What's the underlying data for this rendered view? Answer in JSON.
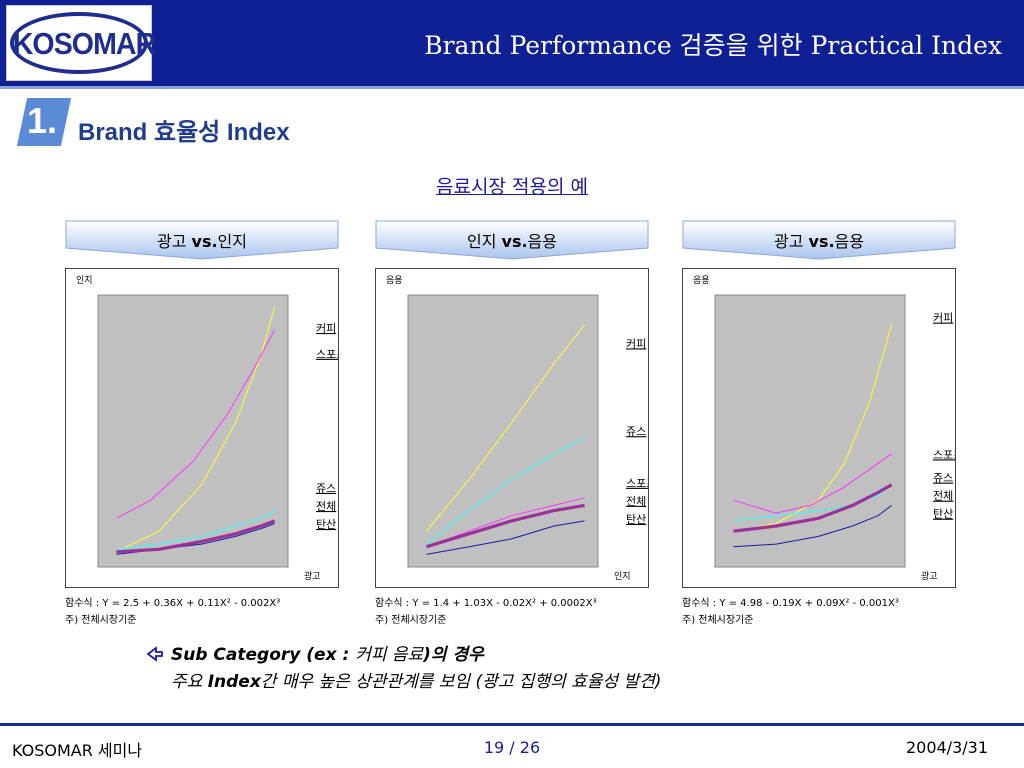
{
  "header": {
    "logo_text": "KOSOMAR",
    "title": "Brand Performance 검증을 위한 Practical Index"
  },
  "section": {
    "number": "1.",
    "title": "Brand 효율성 Index"
  },
  "subtitle": "음료시장 적용의 예",
  "panels": [
    {
      "banner": {
        "prefix": "광고 ",
        "vs": "vs.",
        "suffix": "인지"
      },
      "y_label": "인지",
      "x_label": "광고",
      "formula": "함수식 : Y = 2.5 + 0.36X + 0.11X² - 0.002X³",
      "note": "주) 전체시장기준",
      "series": [
        {
          "name": "커피",
          "color": "#ffff33",
          "points": [
            [
              0.05,
              0.98
            ],
            [
              0.3,
              0.9
            ],
            [
              0.55,
              0.72
            ],
            [
              0.75,
              0.48
            ],
            [
              0.9,
              0.22
            ],
            [
              0.98,
              0.03
            ]
          ]
        },
        {
          "name": "스포츠",
          "color": "#ff33ff",
          "points": [
            [
              0.05,
              0.85
            ],
            [
              0.25,
              0.78
            ],
            [
              0.5,
              0.63
            ],
            [
              0.7,
              0.45
            ],
            [
              0.85,
              0.28
            ],
            [
              0.98,
              0.12
            ]
          ]
        },
        {
          "name": "쥬스",
          "color": "#33ffff",
          "points": [
            [
              0.05,
              0.97
            ],
            [
              0.3,
              0.95
            ],
            [
              0.55,
              0.92
            ],
            [
              0.75,
              0.88
            ],
            [
              0.9,
              0.85
            ],
            [
              0.98,
              0.82
            ]
          ]
        },
        {
          "name": "전체",
          "color": "#993399",
          "bold": true,
          "points": [
            [
              0.05,
              0.98
            ],
            [
              0.3,
              0.97
            ],
            [
              0.55,
              0.94
            ],
            [
              0.75,
              0.91
            ],
            [
              0.9,
              0.88
            ],
            [
              0.98,
              0.86
            ]
          ]
        },
        {
          "name": "탄산",
          "color": "#1a1aa0",
          "points": [
            [
              0.05,
              0.99
            ],
            [
              0.3,
              0.97
            ],
            [
              0.55,
              0.95
            ],
            [
              0.75,
              0.92
            ],
            [
              0.9,
              0.89
            ],
            [
              0.98,
              0.87
            ]
          ]
        }
      ],
      "labels": [
        {
          "text": "커피",
          "y": 0.12
        },
        {
          "text": "스포츠",
          "y": 0.22
        },
        {
          "text": "쥬스",
          "y": 0.74
        },
        {
          "text": "전체",
          "y": 0.81
        },
        {
          "text": "탄산",
          "y": 0.88
        }
      ]
    },
    {
      "banner": {
        "prefix": "인지 ",
        "vs": "vs.",
        "suffix": "음용"
      },
      "y_label": "음용",
      "x_label": "인지",
      "formula": "함수식 : Y = 1.4 + 1.03X - 0.02X² + 0.0002X³",
      "note": "주) 전체시장기준",
      "series": [
        {
          "name": "커피",
          "color": "#ffff33",
          "points": [
            [
              0.05,
              0.9
            ],
            [
              0.3,
              0.7
            ],
            [
              0.55,
              0.48
            ],
            [
              0.8,
              0.25
            ],
            [
              0.98,
              0.1
            ]
          ]
        },
        {
          "name": "쥬스",
          "color": "#33ffff",
          "points": [
            [
              0.05,
              0.95
            ],
            [
              0.3,
              0.82
            ],
            [
              0.55,
              0.7
            ],
            [
              0.8,
              0.6
            ],
            [
              0.98,
              0.54
            ]
          ]
        },
        {
          "name": "스포츠",
          "color": "#ff33ff",
          "points": [
            [
              0.05,
              0.96
            ],
            [
              0.3,
              0.9
            ],
            [
              0.55,
              0.84
            ],
            [
              0.8,
              0.8
            ],
            [
              0.98,
              0.77
            ]
          ]
        },
        {
          "name": "전체",
          "color": "#993399",
          "bold": true,
          "points": [
            [
              0.05,
              0.96
            ],
            [
              0.3,
              0.91
            ],
            [
              0.55,
              0.86
            ],
            [
              0.8,
              0.82
            ],
            [
              0.98,
              0.8
            ]
          ]
        },
        {
          "name": "탄산",
          "color": "#1a1aa0",
          "points": [
            [
              0.05,
              0.99
            ],
            [
              0.3,
              0.96
            ],
            [
              0.55,
              0.93
            ],
            [
              0.8,
              0.88
            ],
            [
              0.98,
              0.86
            ]
          ]
        }
      ],
      "labels": [
        {
          "text": "커피",
          "y": 0.18
        },
        {
          "text": "쥬스",
          "y": 0.52
        },
        {
          "text": "스포츠",
          "y": 0.72
        },
        {
          "text": "전체",
          "y": 0.79
        },
        {
          "text": "탄산",
          "y": 0.86
        }
      ]
    },
    {
      "banner": {
        "prefix": "광고 ",
        "vs": "vs.",
        "suffix": "음용"
      },
      "y_label": "음용",
      "x_label": "광고",
      "formula": "함수식 : Y = 4.98 - 0.19X + 0.09X² - 0.001X³",
      "note": "주) 전체시장기준",
      "series": [
        {
          "name": "커피",
          "color": "#ffff33",
          "points": [
            [
              0.05,
              0.9
            ],
            [
              0.3,
              0.87
            ],
            [
              0.55,
              0.78
            ],
            [
              0.7,
              0.64
            ],
            [
              0.85,
              0.4
            ],
            [
              0.98,
              0.1
            ]
          ]
        },
        {
          "name": "스포츠",
          "color": "#ff33ff",
          "points": [
            [
              0.05,
              0.78
            ],
            [
              0.3,
              0.83
            ],
            [
              0.5,
              0.8
            ],
            [
              0.7,
              0.73
            ],
            [
              0.85,
              0.66
            ],
            [
              0.98,
              0.6
            ]
          ]
        },
        {
          "name": "쥬스",
          "color": "#33ffff",
          "points": [
            [
              0.05,
              0.86
            ],
            [
              0.3,
              0.84
            ],
            [
              0.55,
              0.82
            ],
            [
              0.75,
              0.8
            ],
            [
              0.9,
              0.76
            ],
            [
              0.98,
              0.72
            ]
          ]
        },
        {
          "name": "전체",
          "color": "#993399",
          "bold": true,
          "points": [
            [
              0.05,
              0.9
            ],
            [
              0.3,
              0.88
            ],
            [
              0.55,
              0.85
            ],
            [
              0.75,
              0.8
            ],
            [
              0.9,
              0.75
            ],
            [
              0.98,
              0.72
            ]
          ]
        },
        {
          "name": "탄산",
          "color": "#1a1aa0",
          "points": [
            [
              0.05,
              0.96
            ],
            [
              0.3,
              0.95
            ],
            [
              0.55,
              0.92
            ],
            [
              0.75,
              0.88
            ],
            [
              0.9,
              0.84
            ],
            [
              0.98,
              0.8
            ]
          ]
        }
      ],
      "labels": [
        {
          "text": "커피",
          "y": 0.08
        },
        {
          "text": "스포츠",
          "y": 0.61
        },
        {
          "text": "쥬스",
          "y": 0.7
        },
        {
          "text": "전체",
          "y": 0.77
        },
        {
          "text": "탄산",
          "y": 0.84
        }
      ]
    }
  ],
  "summary": {
    "line1_bold": "Sub Category",
    "line1_a": " (ex : ",
    "line1_b": "커피 음료",
    "line1_c": ")의 경우",
    "line2_a": "주요 ",
    "line2_bold": "Index",
    "line2_b": "간 매우 높은 상관관계를 보임 ",
    "line2_c": "(광고 집행의 효율성 발견)"
  },
  "footer": {
    "left": "KOSOMAR 세미나",
    "page": "19 / 26",
    "date": "2004/3/31"
  },
  "colors": {
    "header": "#0f1f94",
    "plot_bg": "#c0c0c0",
    "link": "#1a1aa8"
  }
}
